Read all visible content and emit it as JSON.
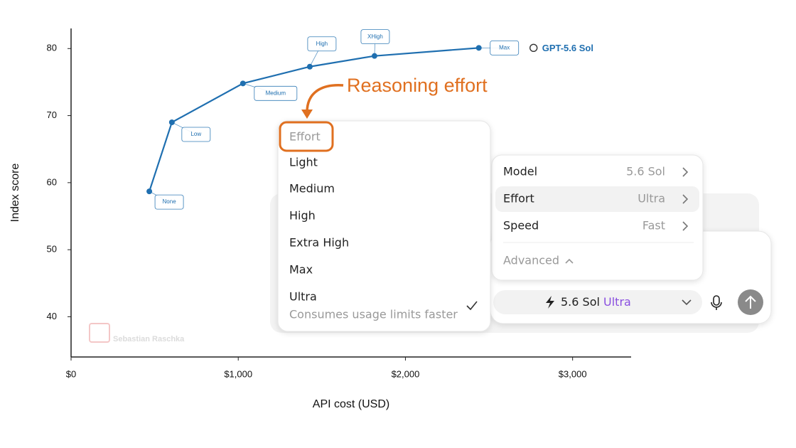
{
  "chart_data": {
    "type": "line",
    "x": [
      468,
      603,
      1028,
      1428,
      1815,
      2439
    ],
    "xlim": [
      0,
      3350
    ],
    "xticks": [
      {
        "value": 0,
        "label": "$0"
      },
      {
        "value": 1000,
        "label": "$1,000"
      },
      {
        "value": 2000,
        "label": "$2,000"
      },
      {
        "value": 3000,
        "label": "$3,000"
      }
    ],
    "ylim": [
      34,
      83
    ],
    "yticks": [
      40,
      50,
      60,
      70,
      80
    ],
    "x_label": "API cost (USD)",
    "y_label": "Index score",
    "series": [
      {
        "name": "GPT-5.6 Sol",
        "color": "#1f6fb0",
        "values": [
          58.7,
          69.0,
          74.8,
          77.3,
          78.9,
          80.1
        ],
        "point_labels": [
          "None",
          "Low",
          "Medium",
          "High",
          "XHigh",
          "Max"
        ]
      }
    ],
    "annotation": "Reasoning effort",
    "watermark": "Sebastian Raschka"
  },
  "effort_menu": {
    "header": "Effort",
    "options": [
      "Light",
      "Medium",
      "High",
      "Extra High",
      "Max",
      "Ultra"
    ],
    "selected_note": "Consumes usage limits faster"
  },
  "settings_panel": {
    "rows": [
      {
        "label": "Model",
        "value": "5.6 Sol"
      },
      {
        "label": "Effort",
        "value": "Ultra"
      },
      {
        "label": "Speed",
        "value": "Fast"
      }
    ],
    "advanced": "Advanced"
  },
  "composer": {
    "model": "5.6 Sol",
    "effort": "Ultra"
  }
}
